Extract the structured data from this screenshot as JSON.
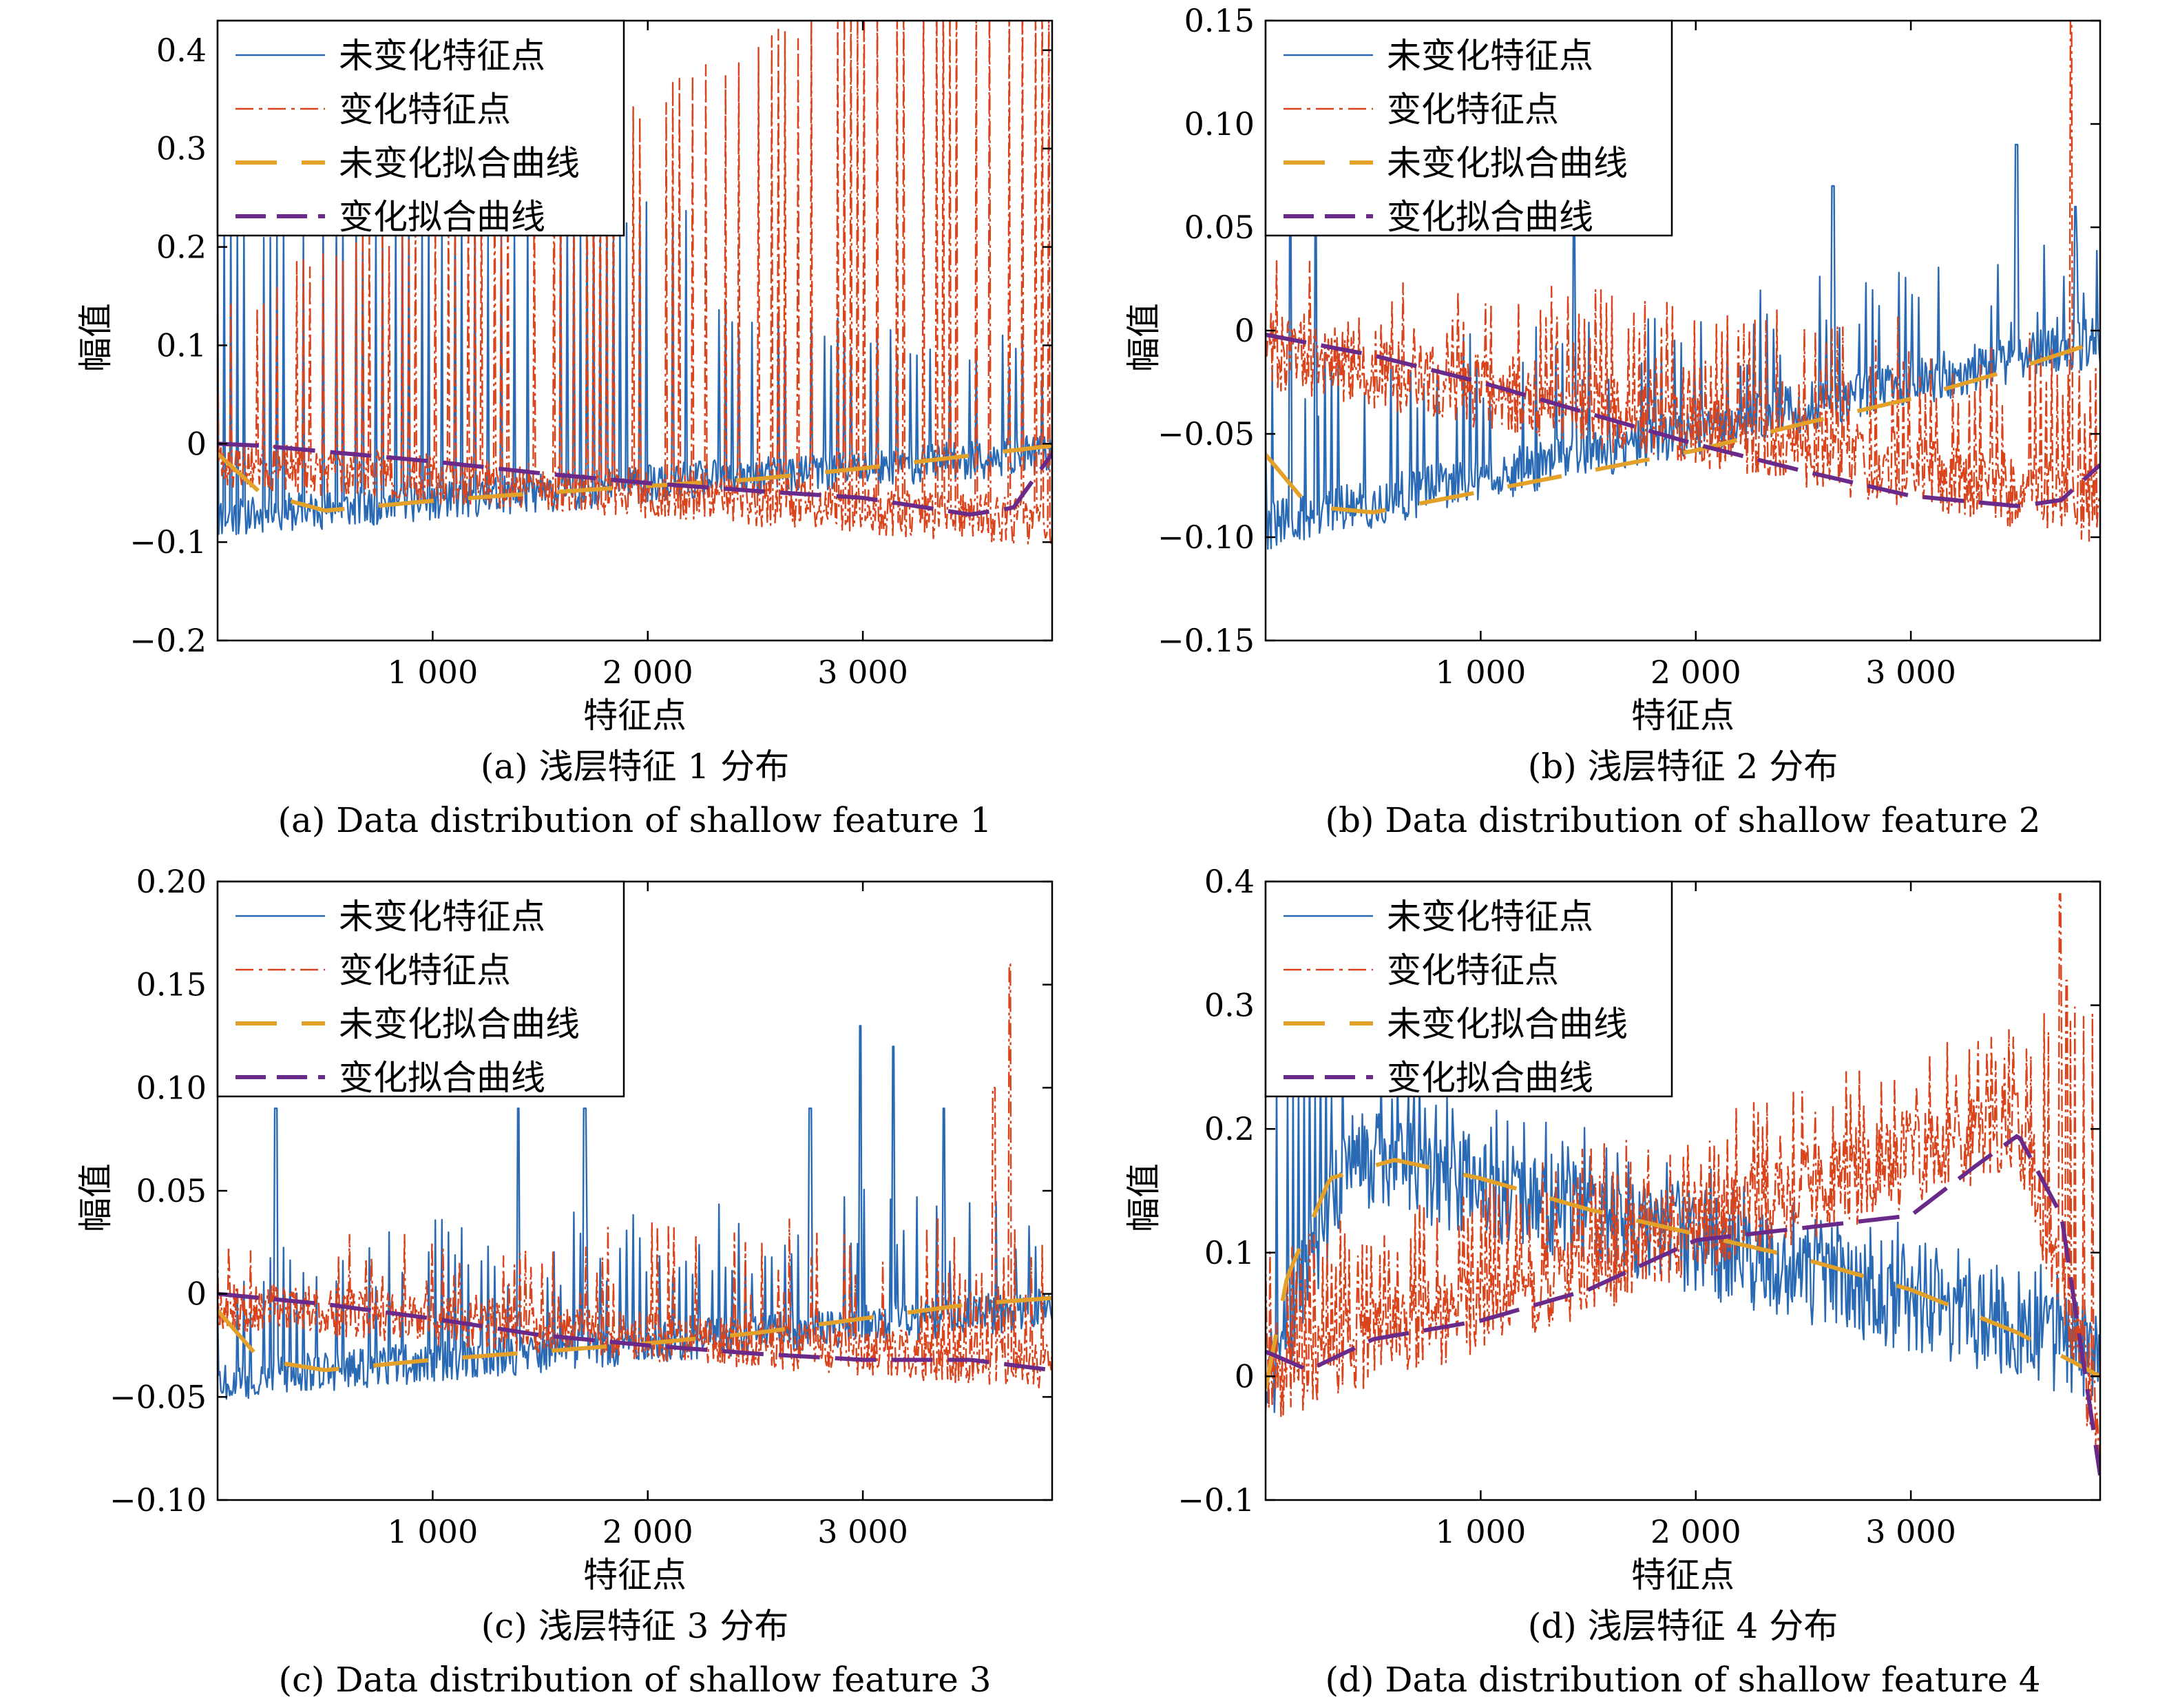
{
  "chart_data": [
    {
      "type": "line",
      "panel": "a",
      "xlabel": "特征点",
      "ylabel": "幅值",
      "caption_cn": "(a) 浅层特征 1 分布",
      "caption_en": "(a) Data distribution of shallow feature 1",
      "xlim": [
        0,
        3880
      ],
      "ylim": [
        -0.2,
        0.43
      ],
      "xticks": [
        1000,
        2000,
        3000
      ],
      "xtick_labels": [
        "1 000",
        "2 000",
        "3 000"
      ],
      "yticks": [
        -0.2,
        -0.1,
        0,
        0.1,
        0.2,
        0.3,
        0.4
      ],
      "ytick_labels": [
        "−0.2",
        "−0.1",
        "0",
        "0.1",
        "0.2",
        "0.3",
        "0.4"
      ],
      "legend_position": "top-left",
      "legend": [
        "未变化特征点",
        "变化特征点",
        "未变化拟合曲线",
        "变化拟合曲线"
      ],
      "series": [
        {
          "name": "未变化拟合曲线",
          "x": [
            0,
            200,
            500,
            1000,
            1500,
            2000,
            2500,
            3000,
            3500,
            3880
          ],
          "y": [
            -0.01,
            -0.05,
            -0.068,
            -0.058,
            -0.05,
            -0.043,
            -0.036,
            -0.025,
            -0.012,
            -0.002
          ]
        },
        {
          "name": "变化拟合曲线",
          "x": [
            0,
            200,
            500,
            1000,
            1500,
            2000,
            2500,
            3000,
            3500,
            3700,
            3880
          ],
          "y": [
            0.0,
            -0.002,
            -0.008,
            -0.018,
            -0.03,
            -0.04,
            -0.048,
            -0.055,
            -0.072,
            -0.065,
            -0.01
          ]
        },
        {
          "name": "未变化特征点",
          "summary": "dense noisy line; baseline ≈ −0.07 rising to ≈ −0.02; spikes up to 0.2+ (clipped), denser in first 2000 points"
        },
        {
          "name": "变化特征点",
          "summary": "dense dash-dot line; baseline ≈ 0 to −0.1; spikes rising from 0.15 to ≈ 0.43 near x=3200"
        }
      ]
    },
    {
      "type": "line",
      "panel": "b",
      "xlabel": "特征点",
      "ylabel": "幅值",
      "caption_cn": "(b) 浅层特征 2 分布",
      "caption_en": "(b) Data distribution of shallow feature 2",
      "xlim": [
        0,
        3880
      ],
      "ylim": [
        -0.15,
        0.15
      ],
      "xticks": [
        1000,
        2000,
        3000
      ],
      "xtick_labels": [
        "1 000",
        "2 000",
        "3 000"
      ],
      "yticks": [
        -0.15,
        -0.1,
        -0.05,
        0,
        0.05,
        0.1,
        0.15
      ],
      "ytick_labels": [
        "−0.15",
        "−0.10",
        "−0.05",
        "0",
        "0.05",
        "0.10",
        "0.15"
      ],
      "legend_position": "top-left",
      "legend": [
        "未变化特征点",
        "变化特征点",
        "未变化拟合曲线",
        "变化拟合曲线"
      ],
      "series": [
        {
          "name": "未变化拟合曲线",
          "x": [
            0,
            200,
            500,
            1000,
            1500,
            2000,
            2500,
            3000,
            3500,
            3880
          ],
          "y": [
            -0.06,
            -0.085,
            -0.088,
            -0.078,
            -0.068,
            -0.058,
            -0.045,
            -0.033,
            -0.018,
            -0.005
          ]
        },
        {
          "name": "变化拟合曲线",
          "x": [
            0,
            500,
            1000,
            1500,
            2000,
            2500,
            3000,
            3500,
            3700,
            3880
          ],
          "y": [
            -0.002,
            -0.012,
            -0.025,
            -0.04,
            -0.055,
            -0.068,
            -0.08,
            -0.085,
            -0.082,
            -0.065
          ]
        },
        {
          "name": "未变化特征点",
          "summary": "noisy band around −0.09 rising to −0.01; spikes to 0.07–0.09"
        },
        {
          "name": "变化特征点",
          "summary": "noisy band around −0.01 falling to −0.08; spike to 0.15 near x=3760"
        }
      ]
    },
    {
      "type": "line",
      "panel": "c",
      "xlabel": "特征点",
      "ylabel": "幅值",
      "caption_cn": "(c) 浅层特征 3 分布",
      "caption_en": "(c) Data distribution of shallow feature 3",
      "xlim": [
        0,
        3880
      ],
      "ylim": [
        -0.1,
        0.2
      ],
      "xticks": [
        1000,
        2000,
        3000
      ],
      "xtick_labels": [
        "1 000",
        "2 000",
        "3 000"
      ],
      "yticks": [
        -0.1,
        -0.05,
        0,
        0.05,
        0.1,
        0.15,
        0.2
      ],
      "ytick_labels": [
        "−0.10",
        "−0.05",
        "0",
        "0.05",
        "0.10",
        "0.15",
        "0.20"
      ],
      "legend_position": "top-left",
      "legend": [
        "未变化特征点",
        "变化特征点",
        "未变化拟合曲线",
        "变化拟合曲线"
      ],
      "series": [
        {
          "name": "未变化拟合曲线",
          "x": [
            0,
            200,
            500,
            1000,
            1500,
            2000,
            2500,
            3000,
            3500,
            3880
          ],
          "y": [
            -0.008,
            -0.032,
            -0.037,
            -0.032,
            -0.028,
            -0.024,
            -0.019,
            -0.012,
            -0.005,
            -0.002
          ]
        },
        {
          "name": "变化拟合曲线",
          "x": [
            0,
            500,
            1000,
            1500,
            2000,
            2500,
            3000,
            3500,
            3880
          ],
          "y": [
            0.0,
            -0.005,
            -0.012,
            -0.02,
            -0.025,
            -0.029,
            -0.032,
            -0.032,
            -0.037
          ]
        },
        {
          "name": "未变化特征点",
          "summary": "noisy band around −0.04; spikes to 0.09–0.13"
        },
        {
          "name": "变化特征点",
          "summary": "noisy band around −0.01 to −0.03; spike to 0.16 near x=3680"
        }
      ]
    },
    {
      "type": "line",
      "panel": "d",
      "xlabel": "特征点",
      "ylabel": "幅值",
      "caption_cn": "(d) 浅层特征 4 分布",
      "caption_en": "(d) Data distribution of shallow feature 4",
      "xlim": [
        0,
        3880
      ],
      "ylim": [
        -0.1,
        0.4
      ],
      "xticks": [
        1000,
        2000,
        3000
      ],
      "xtick_labels": [
        "1 000",
        "2 000",
        "3 000"
      ],
      "yticks": [
        -0.1,
        0,
        0.1,
        0.2,
        0.3,
        0.4
      ],
      "ytick_labels": [
        "−0.1",
        "0",
        "0.1",
        "0.2",
        "0.3",
        "0.4"
      ],
      "legend_position": "top-left",
      "legend": [
        "未变化特征点",
        "变化特征点",
        "未变化拟合曲线",
        "变化拟合曲线"
      ],
      "series": [
        {
          "name": "未变化拟合曲线",
          "x": [
            0,
            100,
            300,
            600,
            1000,
            1500,
            2000,
            2500,
            3000,
            3500,
            3880
          ],
          "y": [
            -0.01,
            0.08,
            0.16,
            0.175,
            0.16,
            0.135,
            0.115,
            0.095,
            0.07,
            0.035,
            0.0
          ]
        },
        {
          "name": "变化拟合曲线",
          "x": [
            0,
            200,
            500,
            1000,
            1500,
            2000,
            2500,
            3000,
            3300,
            3500,
            3700,
            3880
          ],
          "y": [
            0.02,
            0.005,
            0.03,
            0.045,
            0.07,
            0.11,
            0.12,
            0.13,
            0.17,
            0.195,
            0.13,
            -0.08
          ]
        },
        {
          "name": "未变化特征点",
          "summary": "dense band around 0.2 early, falling to ≈ 0.0 by the end"
        },
        {
          "name": "变化特征点",
          "summary": "dense band rising from ≈ 0.0 to ≈ 0.2–0.3; spike to ≈ 0.39 near x=3690"
        }
      ]
    }
  ],
  "colors": {
    "unchanged_points": "#2a6ab5",
    "changed_points": "#d9441c",
    "unchanged_fit": "#e4a12a",
    "changed_fit": "#6a2a8a"
  }
}
